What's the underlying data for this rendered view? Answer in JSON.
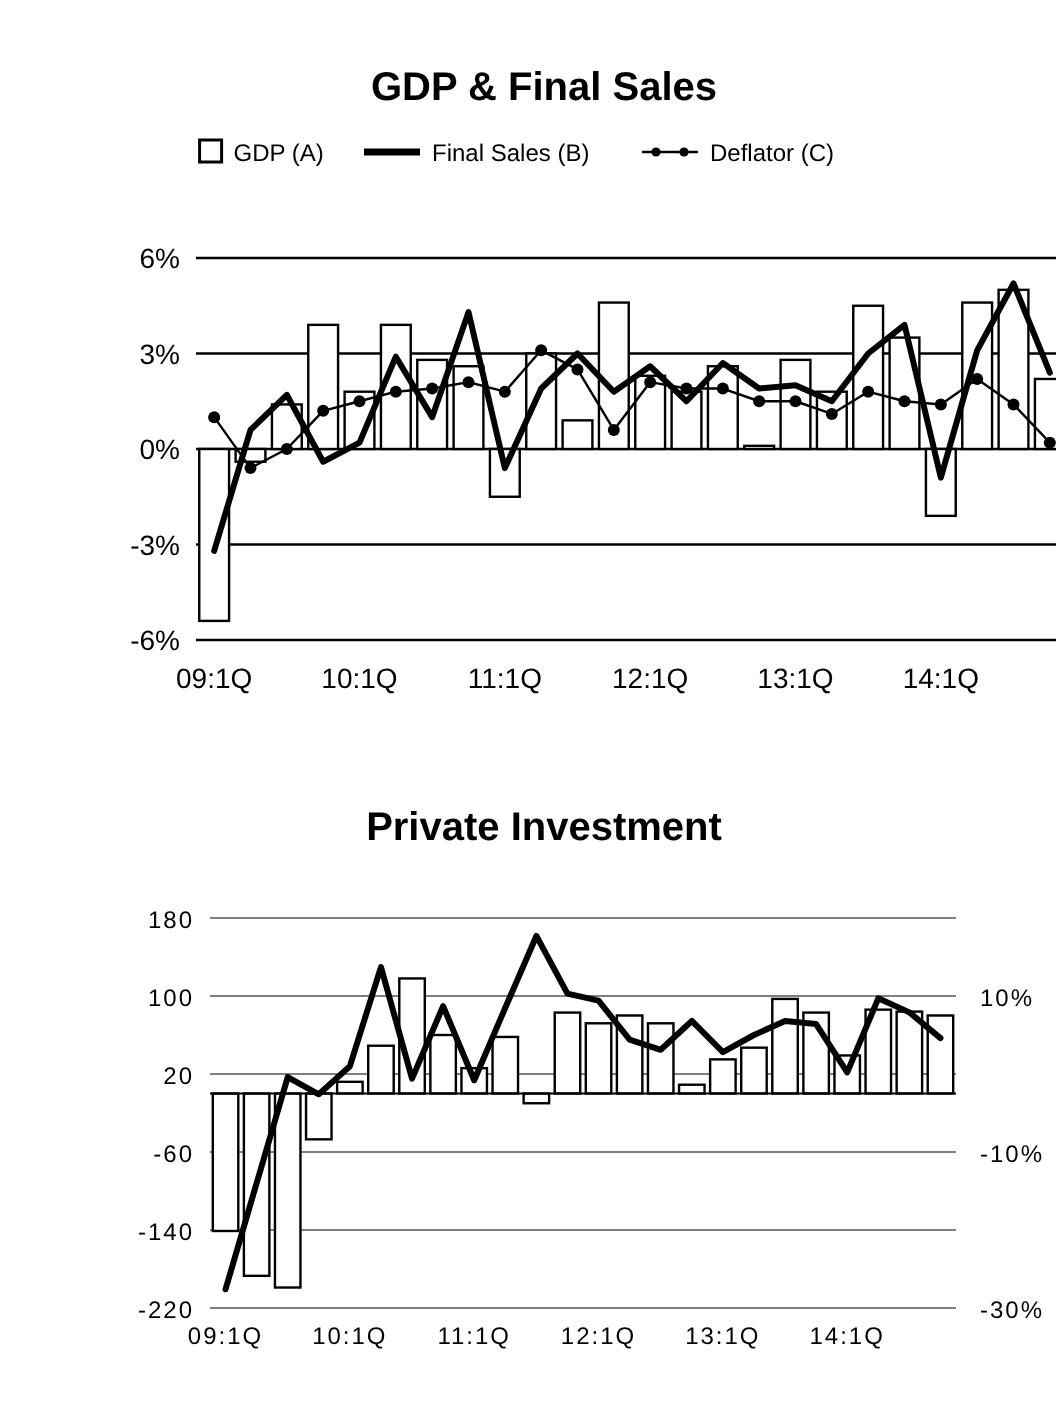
{
  "chart_data": [
    {
      "type": "bar",
      "title": "GDP & Final Sales",
      "categories": [
        "09:1Q",
        null,
        null,
        null,
        "10:1Q",
        null,
        null,
        null,
        "11:1Q",
        null,
        null,
        null,
        "12:1Q",
        null,
        null,
        null,
        "13:1Q",
        null,
        null,
        null,
        "14:1Q",
        null,
        null,
        null
      ],
      "series": [
        {
          "name": "GDP (A)",
          "color": "#ffffff",
          "values": [
            -5.4,
            -0.4,
            1.4,
            3.9,
            1.8,
            3.9,
            2.8,
            2.6,
            -1.5,
            3.0,
            0.9,
            4.6,
            2.3,
            1.8,
            2.6,
            0.1,
            2.8,
            1.8,
            4.5,
            3.5,
            -2.1,
            4.6,
            5.0,
            2.2
          ]
        },
        {
          "name": "Final Sales (B)",
          "type": "line",
          "color": "#000000",
          "marker": "none",
          "values": [
            -3.2,
            0.6,
            1.7,
            -0.4,
            0.2,
            2.9,
            1.0,
            4.3,
            -0.6,
            1.9,
            3.0,
            1.8,
            2.6,
            1.5,
            2.7,
            1.9,
            2.0,
            1.5,
            3.0,
            3.9,
            -0.9,
            3.1,
            5.2,
            2.4
          ]
        },
        {
          "name": "Deflator (C)",
          "type": "line",
          "color": "#000000",
          "marker": "circle",
          "values": [
            1.0,
            -0.6,
            0.0,
            1.2,
            1.5,
            1.8,
            1.9,
            2.1,
            1.8,
            3.1,
            2.5,
            0.6,
            2.1,
            1.9,
            1.9,
            1.5,
            1.5,
            1.1,
            1.8,
            1.5,
            1.4,
            2.2,
            1.4,
            0.2
          ]
        }
      ],
      "ylim": [
        -6,
        6
      ],
      "yticks": [
        {
          "value": -6,
          "label": "-6%"
        },
        {
          "value": -3,
          "label": "-3%"
        },
        {
          "value": 0,
          "label": "0%"
        },
        {
          "value": 3,
          "label": "3%"
        },
        {
          "value": 6,
          "label": "6%"
        }
      ],
      "grid": "y",
      "legend": "top"
    },
    {
      "type": "bar",
      "title": "Private Investment",
      "categories": [
        "09:1Q",
        null,
        null,
        null,
        "10:1Q",
        null,
        null,
        null,
        "11:1Q",
        null,
        null,
        null,
        "12:1Q",
        null,
        null,
        null,
        "13:1Q",
        null,
        null,
        null,
        "14:1Q",
        null,
        null,
        null
      ],
      "series": [
        {
          "color": "#ffffff",
          "values": [
            -141,
            -187,
            -199,
            -47,
            12,
            49,
            118,
            60,
            26,
            58,
            -10,
            83,
            72,
            80,
            72,
            9,
            35,
            47,
            97,
            83,
            39,
            86,
            84,
            80
          ]
        },
        {
          "type": "line",
          "axis": "y2",
          "color": "#000000",
          "marker": "none",
          "values": [
            -27.6,
            -14,
            -0.4,
            -2.6,
            1.0,
            13.7,
            -0.6,
            8.7,
            -0.8,
            8.5,
            17.7,
            10.3,
            9.4,
            4.4,
            3.1,
            6.8,
            2.8,
            5.0,
            6.8,
            6.4,
            0.2,
            9.7,
            7.9,
            4.6
          ]
        }
      ],
      "ylim": [
        -220,
        180
      ],
      "yticks": [
        -220,
        -140,
        -60,
        20,
        100,
        180
      ],
      "y2lim": [
        -30,
        20
      ],
      "y2ticks": [
        {
          "value": -30,
          "label": "-30%"
        },
        {
          "value": -10,
          "label": "-10%"
        },
        {
          "value": 10,
          "label": "10%"
        }
      ],
      "grid": "y"
    }
  ]
}
